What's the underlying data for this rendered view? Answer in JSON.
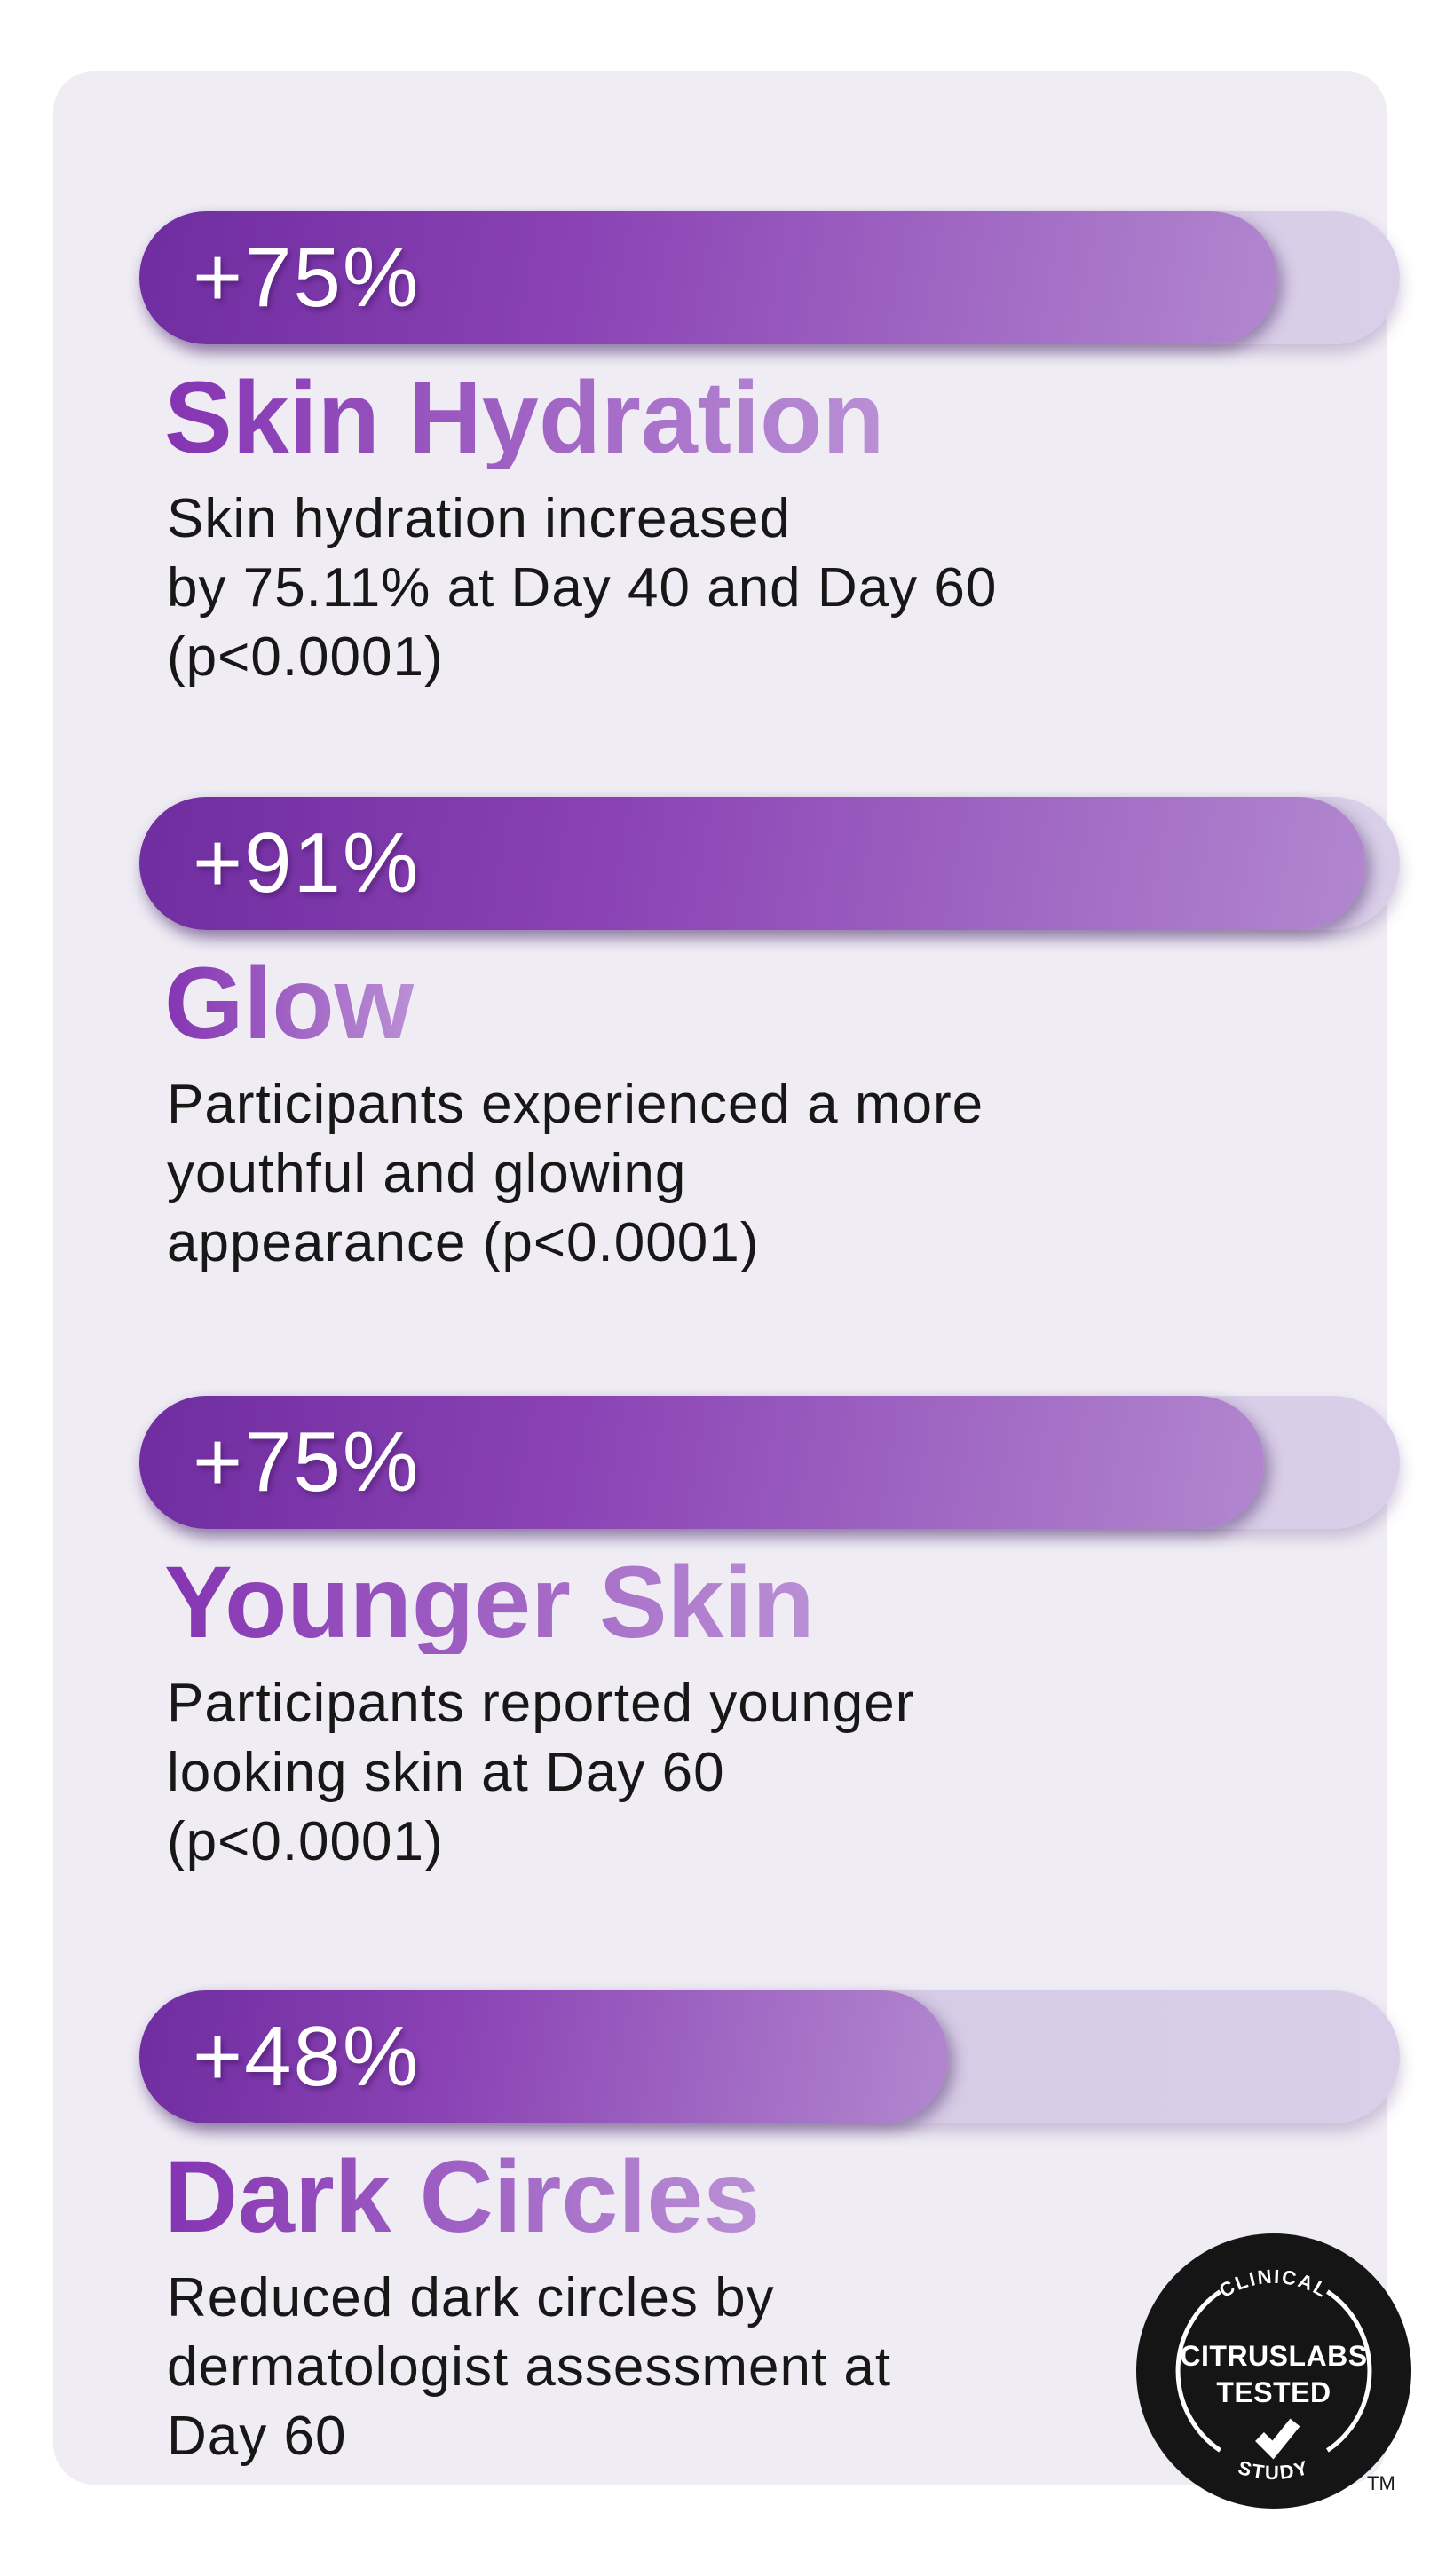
{
  "page": {
    "background_color": "#ffffff",
    "card_background_color": "#efecf4"
  },
  "colors": {
    "bar_gradient_start": "#6f2da0",
    "bar_gradient_end": "#b287cf",
    "bar_track": "#d5c9e3",
    "heading_gradient_start": "#8534b2",
    "heading_gradient_end": "#ba90d5",
    "body_text": "#171717",
    "badge_background": "#151515",
    "badge_text": "#ffffff"
  },
  "sections": [
    {
      "value_label": "+75%",
      "fill_percent": 90,
      "title": "Skin Hydration",
      "description": "Skin hydration increased\nby 75.11% at Day 40 and Day 60\n(p<0.0001)"
    },
    {
      "value_label": "+91%",
      "fill_percent": 97,
      "title": "Glow",
      "description": "Participants experienced a more\nyouthful and glowing\nappearance (p<0.0001)"
    },
    {
      "value_label": "+75%",
      "fill_percent": 89,
      "title": "Younger Skin",
      "description": "Participants reported younger\nlooking skin at Day 60\n(p<0.0001)"
    },
    {
      "value_label": "+48%",
      "fill_percent": 64,
      "title": "Dark Circles",
      "description": "Reduced dark circles by\ndermatologist assessment at\nDay 60"
    }
  ],
  "badge": {
    "top_arc": "CLINICAL",
    "line1": "CITRUSLABS",
    "line2": "TESTED",
    "bottom_arc": "STUDY",
    "check_icon": "checkmark",
    "trademark": "TM"
  },
  "chart_data": {
    "type": "bar",
    "orientation": "horizontal",
    "categories": [
      "Skin Hydration",
      "Glow",
      "Younger Skin",
      "Dark Circles"
    ],
    "values": [
      75,
      91,
      75,
      48
    ],
    "value_labels": [
      "+75%",
      "+91%",
      "+75%",
      "+48%"
    ],
    "unit": "percent improvement",
    "annotations": [
      "Skin hydration increased by 75.11% at Day 40 and Day 60 (p<0.0001)",
      "Participants experienced a more youthful and glowing appearance (p<0.0001)",
      "Participants reported younger looking skin at Day 60 (p<0.0001)",
      "Reduced dark circles by dermatologist assessment at Day 60"
    ],
    "title": "",
    "xlabel": "",
    "ylabel": "",
    "xlim": [
      0,
      100
    ],
    "grid": false,
    "legend": false
  }
}
